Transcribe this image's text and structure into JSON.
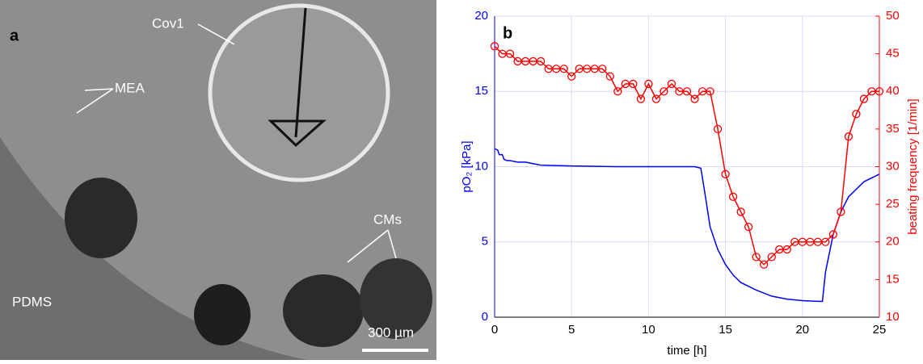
{
  "panel_a": {
    "letter": "a",
    "labels": [
      "Cov1",
      "MEA",
      "CMs",
      "PDMS"
    ],
    "scale_bar": "300 µm"
  },
  "chart_data": {
    "type": "line",
    "letter": "b",
    "xlabel": "time [h]",
    "ylabel": "pO₂ [kPa]",
    "y2label": "beating frequency [1/min]",
    "xlim": [
      0,
      25
    ],
    "xticks": [
      0,
      5,
      10,
      15,
      20,
      25
    ],
    "ylim": [
      0,
      20
    ],
    "yticks": [
      0,
      5,
      10,
      15,
      20
    ],
    "y2lim": [
      10,
      50
    ],
    "y2ticks": [
      10,
      15,
      20,
      25,
      30,
      35,
      40,
      45,
      50
    ],
    "grid": true,
    "series": [
      {
        "color": "#0000ff",
        "axis": "y",
        "markers": false,
        "x": [
          0,
          0.2,
          0.3,
          0.5,
          0.6,
          0.8,
          1,
          1.5,
          2,
          3,
          5,
          8,
          10,
          13,
          13.4,
          13.7,
          14,
          14.5,
          15,
          15.5,
          16,
          17,
          18,
          19,
          20,
          21,
          21.3,
          21.5,
          22,
          22.5,
          23,
          24,
          25
        ],
        "values": [
          11.2,
          11.1,
          10.8,
          10.8,
          10.5,
          10.4,
          10.4,
          10.3,
          10.3,
          10.1,
          10.05,
          10,
          10,
          10,
          9.9,
          8,
          6,
          4.5,
          3.5,
          2.8,
          2.3,
          1.8,
          1.4,
          1.2,
          1.1,
          1.05,
          1.05,
          3,
          5.5,
          7,
          8,
          9,
          9.5
        ]
      },
      {
        "color": "#ff0000",
        "axis": "y2",
        "markers": true,
        "x": [
          0,
          0.5,
          1,
          1.5,
          2,
          2.5,
          3,
          3.5,
          4,
          4.5,
          5,
          5.5,
          6,
          6.5,
          7,
          7.5,
          8,
          8.5,
          9,
          9.5,
          10,
          10.5,
          11,
          11.5,
          12,
          12.5,
          13,
          13.5,
          14,
          14.5,
          15,
          15.5,
          16,
          16.5,
          17,
          17.5,
          18,
          18.5,
          19,
          19.5,
          20,
          20.5,
          21,
          21.5,
          22,
          22.5,
          23,
          23.5,
          24,
          24.5,
          25
        ],
        "values": [
          46,
          45,
          45,
          44,
          44,
          44,
          44,
          43,
          43,
          43,
          42,
          43,
          43,
          43,
          43,
          42,
          40,
          41,
          41,
          39,
          41,
          39,
          40,
          41,
          40,
          40,
          39,
          40,
          40,
          35,
          29,
          26,
          24,
          22,
          18,
          17,
          18,
          19,
          19,
          20,
          20,
          20,
          20,
          20,
          21,
          24,
          34,
          37,
          39,
          40,
          40
        ]
      }
    ]
  }
}
